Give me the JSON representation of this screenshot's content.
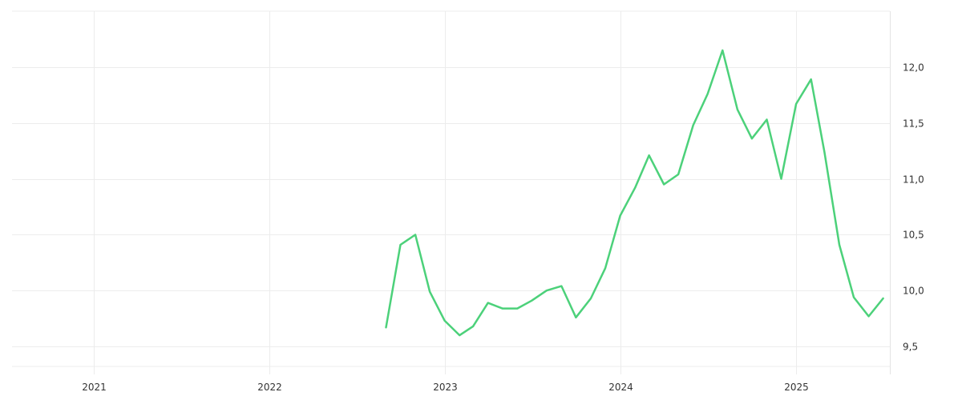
{
  "chart_data": {
    "type": "line",
    "title": "",
    "xlabel": "",
    "ylabel": "",
    "legend": "none",
    "grid": true,
    "y_axis_side": "right",
    "decimal_separator": ",",
    "xlim": [
      "2020-07-15",
      "2025-07-15"
    ],
    "ylim": [
      9.25,
      12.5
    ],
    "x_ticks": [
      {
        "date": "2021-01-01",
        "label": "2021"
      },
      {
        "date": "2022-01-01",
        "label": "2022"
      },
      {
        "date": "2023-01-01",
        "label": "2023"
      },
      {
        "date": "2024-01-01",
        "label": "2024"
      },
      {
        "date": "2025-01-01",
        "label": "2025"
      }
    ],
    "y_ticks": [
      {
        "value": 9.5,
        "label": "9,5"
      },
      {
        "value": 10.0,
        "label": "10,0"
      },
      {
        "value": 10.5,
        "label": "10,5"
      },
      {
        "value": 11.0,
        "label": "11,0"
      },
      {
        "value": 11.5,
        "label": "11,5"
      },
      {
        "value": 12.0,
        "label": "12,0"
      }
    ],
    "series": [
      {
        "color": "#4cd17a",
        "points": [
          {
            "x": "2022-09-01",
            "y": 9.67
          },
          {
            "x": "2022-10-01",
            "y": 10.41
          },
          {
            "x": "2022-11-01",
            "y": 10.5
          },
          {
            "x": "2022-12-01",
            "y": 9.99
          },
          {
            "x": "2023-01-01",
            "y": 9.73
          },
          {
            "x": "2023-02-01",
            "y": 9.6
          },
          {
            "x": "2023-03-01",
            "y": 9.68
          },
          {
            "x": "2023-04-01",
            "y": 9.89
          },
          {
            "x": "2023-05-01",
            "y": 9.84
          },
          {
            "x": "2023-06-01",
            "y": 9.84
          },
          {
            "x": "2023-07-01",
            "y": 9.91
          },
          {
            "x": "2023-08-01",
            "y": 10.0
          },
          {
            "x": "2023-09-01",
            "y": 10.04
          },
          {
            "x": "2023-10-01",
            "y": 9.76
          },
          {
            "x": "2023-11-01",
            "y": 9.93
          },
          {
            "x": "2023-12-01",
            "y": 10.2
          },
          {
            "x": "2024-01-01",
            "y": 10.67
          },
          {
            "x": "2024-02-01",
            "y": 10.92
          },
          {
            "x": "2024-03-01",
            "y": 11.21
          },
          {
            "x": "2024-04-01",
            "y": 10.95
          },
          {
            "x": "2024-05-01",
            "y": 11.04
          },
          {
            "x": "2024-06-01",
            "y": 11.48
          },
          {
            "x": "2024-07-01",
            "y": 11.76
          },
          {
            "x": "2024-08-01",
            "y": 12.15
          },
          {
            "x": "2024-09-01",
            "y": 11.62
          },
          {
            "x": "2024-10-01",
            "y": 11.36
          },
          {
            "x": "2024-11-01",
            "y": 11.53
          },
          {
            "x": "2024-12-01",
            "y": 11.0
          },
          {
            "x": "2025-01-01",
            "y": 11.67
          },
          {
            "x": "2025-02-01",
            "y": 11.89
          },
          {
            "x": "2025-03-01",
            "y": 11.24
          },
          {
            "x": "2025-04-01",
            "y": 10.41
          },
          {
            "x": "2025-05-01",
            "y": 9.94
          },
          {
            "x": "2025-06-01",
            "y": 9.77
          },
          {
            "x": "2025-07-01",
            "y": 9.93
          }
        ]
      }
    ]
  }
}
